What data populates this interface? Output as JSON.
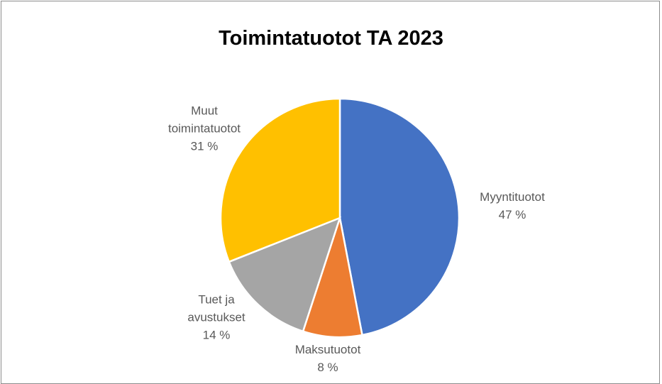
{
  "chart_data": {
    "type": "pie",
    "title": "Toimintatuotot TA 2023",
    "categories": [
      "Myyntituotot",
      "Maksutuotot",
      "Tuet ja avustukset",
      "Muut toimintatuotot"
    ],
    "values": [
      47,
      8,
      14,
      31
    ],
    "value_labels": [
      "47 %",
      "8 %",
      "14 %",
      "31 %"
    ],
    "colors": [
      "#4472c4",
      "#ed7d31",
      "#a5a5a5",
      "#ffc000"
    ]
  }
}
